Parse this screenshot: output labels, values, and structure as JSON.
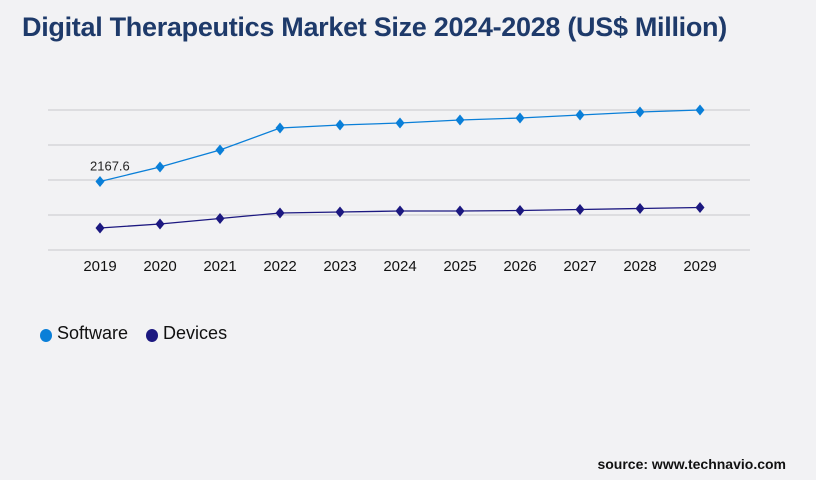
{
  "title": "Digital Therapeutics Market Size 2024-2028 (US$ Million)",
  "source": "source: www.technavio.com",
  "colors": {
    "software": "#0a7fd8",
    "devices": "#1c1880",
    "grid": "#c8c8cc",
    "background": "#f2f2f4"
  },
  "chart_data": {
    "type": "line",
    "title": "Digital Therapeutics Market Size 2024-2028 (US$ Million)",
    "x": [
      "2019",
      "2020",
      "2021",
      "2022",
      "2023",
      "2024",
      "2025",
      "2026",
      "2027",
      "2028",
      "2029"
    ],
    "series": [
      {
        "name": "Software",
        "color": "#0a7fd8",
        "values": [
          2167.6,
          2626,
          3164,
          3860,
          3955,
          4018,
          4113,
          4176,
          4271,
          4366,
          4430
        ]
      },
      {
        "name": "Devices",
        "color": "#1c1880",
        "values": [
          696,
          823,
          997,
          1171,
          1202,
          1234,
          1234,
          1250,
          1281,
          1313,
          1345
        ]
      }
    ],
    "data_labels": [
      {
        "series": "Software",
        "x": "2019",
        "text": "2167.6"
      }
    ],
    "ylim": [
      0,
      4430
    ],
    "y_gridlines": 5,
    "y_tick_labels_shown": false,
    "grid": true,
    "legend": "bottom-left",
    "marker": "diamond"
  }
}
